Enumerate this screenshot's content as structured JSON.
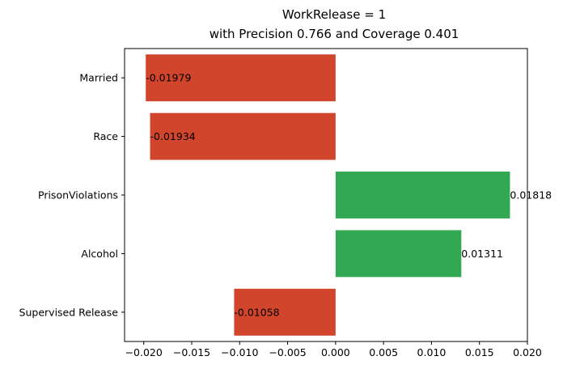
{
  "chart_data": {
    "type": "bar",
    "orientation": "horizontal",
    "title": [
      "WorkRelease = 1",
      "with Precision 0.766 and Coverage 0.401"
    ],
    "xlabel": "",
    "ylabel": "",
    "xlim": [
      -0.022,
      0.02
    ],
    "xticks": [
      -0.02,
      -0.015,
      -0.01,
      -0.005,
      0.0,
      0.005,
      0.01,
      0.015,
      0.02
    ],
    "xtick_labels": [
      "−0.020",
      "−0.015",
      "−0.010",
      "−0.005",
      "0.000",
      "0.005",
      "0.010",
      "0.015",
      "0.020"
    ],
    "grid": false,
    "legend": "none",
    "categories": [
      "Married",
      "Race",
      "PrisonViolations",
      "Alcohol",
      "Supervised Release"
    ],
    "values": [
      -0.01979,
      -0.01934,
      0.01818,
      0.01311,
      -0.01058
    ],
    "value_labels": [
      "-0.01979",
      "-0.01934",
      "0.01818",
      "0.01311",
      "-0.01058"
    ],
    "colors": {
      "negative": "#d0452b",
      "positive": "#33a853"
    }
  }
}
